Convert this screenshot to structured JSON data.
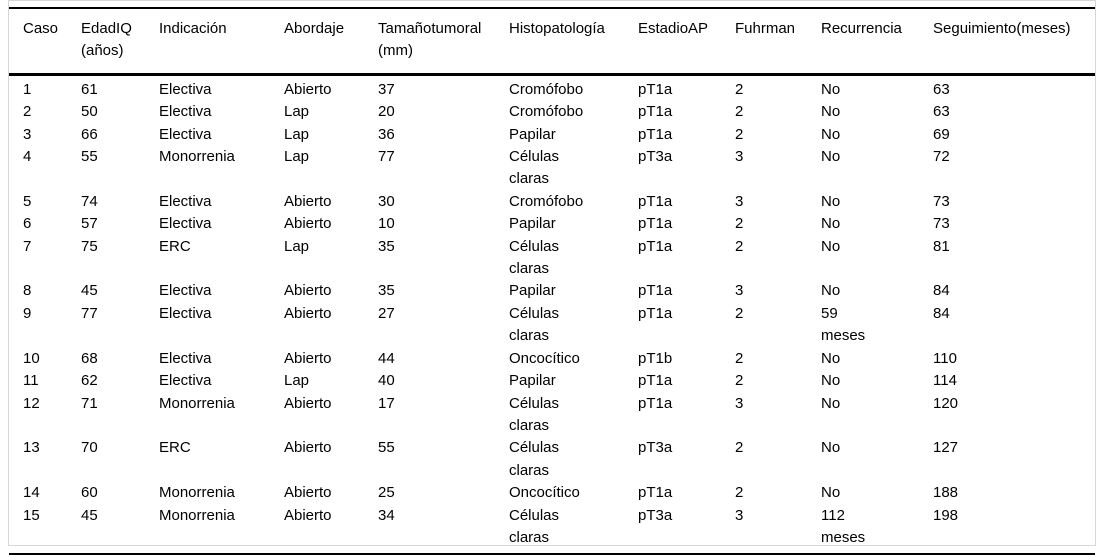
{
  "table": {
    "columns": [
      {
        "key": "caso",
        "label": "Caso"
      },
      {
        "key": "edad",
        "label": "EdadIQ\n(años)"
      },
      {
        "key": "indicacion",
        "label": "Indicación"
      },
      {
        "key": "abordaje",
        "label": "Abordaje"
      },
      {
        "key": "tamano",
        "label": "Tamañotumoral\n(mm)"
      },
      {
        "key": "histo",
        "label": "Histopatología"
      },
      {
        "key": "estadio",
        "label": "EstadioAP"
      },
      {
        "key": "fuhrman",
        "label": "Fuhrman"
      },
      {
        "key": "recurrencia",
        "label": "Recurrencia"
      },
      {
        "key": "seguimiento",
        "label": "Seguimiento(meses)"
      }
    ],
    "rows": [
      [
        "1",
        "61",
        "Electiva",
        "Abierto",
        "37",
        "Cromófobo",
        "pT1a",
        "2",
        "No",
        "63"
      ],
      [
        "2",
        "50",
        "Electiva",
        "Lap",
        "20",
        "Cromófobo",
        "pT1a",
        "2",
        "No",
        "63"
      ],
      [
        "3",
        "66",
        "Electiva",
        "Lap",
        "36",
        "Papilar",
        "pT1a",
        "2",
        "No",
        "69"
      ],
      [
        "4",
        "55",
        "Monorrenia",
        "Lap",
        "77",
        "Células\nclaras",
        "pT3a",
        "3",
        "No",
        "72"
      ],
      [
        "5",
        "74",
        "Electiva",
        "Abierto",
        "30",
        "Cromófobo",
        "pT1a",
        "3",
        "No",
        "73"
      ],
      [
        "6",
        "57",
        "Electiva",
        "Abierto",
        "10",
        "Papilar",
        "pT1a",
        "2",
        "No",
        "73"
      ],
      [
        "7",
        "75",
        "ERC",
        "Lap",
        "35",
        "Células\nclaras",
        "pT1a",
        "2",
        "No",
        "81"
      ],
      [
        "8",
        "45",
        "Electiva",
        "Abierto",
        "35",
        "Papilar",
        "pT1a",
        "3",
        "No",
        "84"
      ],
      [
        "9",
        "77",
        "Electiva",
        "Abierto",
        "27",
        "Células\nclaras",
        "pT1a",
        "2",
        "59\nmeses",
        "84"
      ],
      [
        "10",
        "68",
        "Electiva",
        "Abierto",
        "44",
        "Oncocítico",
        "pT1b",
        "2",
        "No",
        "110"
      ],
      [
        "11",
        "62",
        "Electiva",
        "Lap",
        "40",
        "Papilar",
        "pT1a",
        "2",
        "No",
        "114"
      ],
      [
        "12",
        "71",
        "Monorrenia",
        "Abierto",
        "17",
        "Células\nclaras",
        "pT1a",
        "3",
        "No",
        "120"
      ],
      [
        "13",
        "70",
        "ERC",
        "Abierto",
        "55",
        "Células\nclaras",
        "pT3a",
        "2",
        "No",
        "127"
      ],
      [
        "14",
        "60",
        "Monorrenia",
        "Abierto",
        "25",
        "Oncocítico",
        "pT1a",
        "2",
        "No",
        "188"
      ],
      [
        "15",
        "45",
        "Monorrenia",
        "Abierto",
        "34",
        "Células\nclaras",
        "pT3a",
        "3",
        "112\nmeses",
        "198"
      ]
    ]
  },
  "style": {
    "rule_color": "#000000",
    "frame_color": "#d6d6d6",
    "text_color": "#000000",
    "background": "#ffffff"
  }
}
